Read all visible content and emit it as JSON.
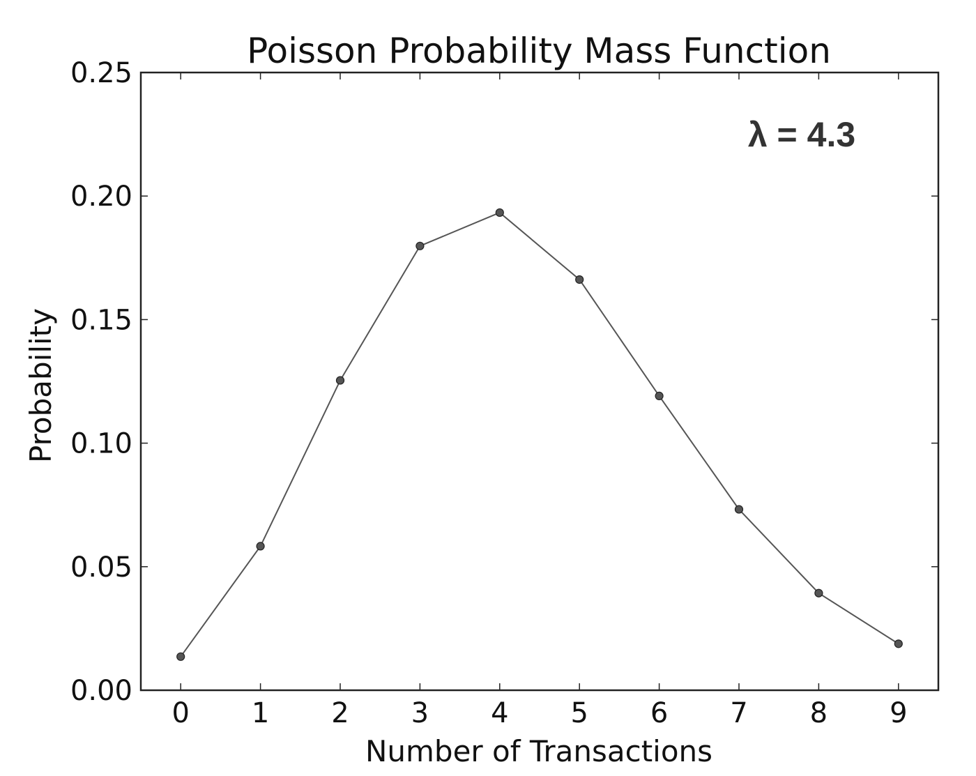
{
  "chart_data": {
    "type": "line",
    "title": "Poisson Probability Mass Function",
    "xlabel": "Number of Transactions",
    "ylabel": "Probability",
    "annotation": "λ = 4.3",
    "annotation_position": "top-right",
    "xlim": [
      -0.5,
      9.5
    ],
    "ylim": [
      0,
      0.25
    ],
    "xticks": [
      0,
      1,
      2,
      3,
      4,
      5,
      6,
      7,
      8,
      9
    ],
    "xtick_labels": [
      "0",
      "1",
      "2",
      "3",
      "4",
      "5",
      "6",
      "7",
      "8",
      "9"
    ],
    "yticks": [
      0,
      0.05,
      0.1,
      0.15,
      0.2,
      0.25
    ],
    "ytick_labels": [
      "0.00",
      "0.05",
      "0.10",
      "0.15",
      "0.20",
      "0.25"
    ],
    "grid": false,
    "series": [
      {
        "x": [
          0,
          1,
          2,
          3,
          4,
          5,
          6,
          7,
          8,
          9
        ],
        "values": [
          0.0136,
          0.0583,
          0.1254,
          0.1798,
          0.1933,
          0.1662,
          0.1191,
          0.0732,
          0.0393,
          0.0188
        ],
        "color": "#555555",
        "marker_color": "#555555"
      }
    ]
  }
}
